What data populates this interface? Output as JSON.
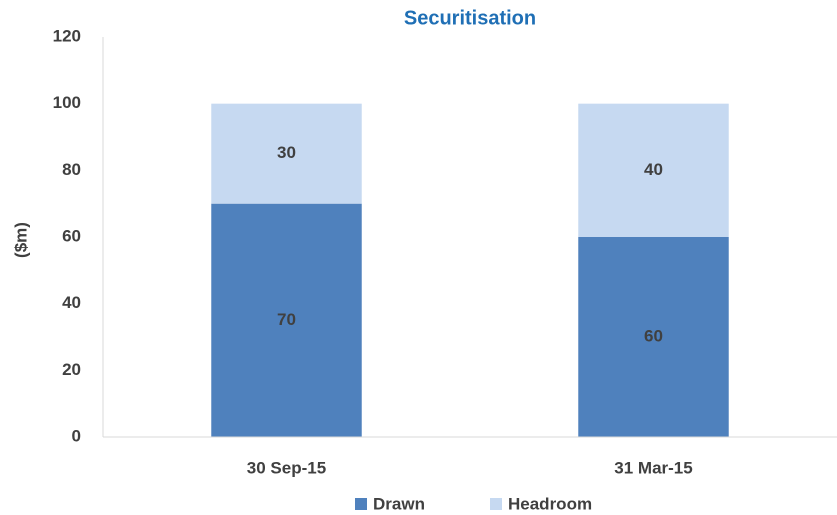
{
  "chart_data": {
    "type": "stacked_bar",
    "title": "Securitisation",
    "y_label": "($m)",
    "categories": [
      "30 Sep-15",
      "31 Mar-15"
    ],
    "series": [
      {
        "name": "Drawn",
        "color": "#4f81bd",
        "values": [
          70,
          60
        ]
      },
      {
        "name": "Headroom",
        "color": "#c6d9f1",
        "values": [
          30,
          40
        ]
      }
    ],
    "ylim": [
      0,
      120
    ],
    "yticks": [
      0,
      20,
      40,
      60,
      80,
      100,
      120
    ],
    "grid": false,
    "legend": "bottom"
  }
}
